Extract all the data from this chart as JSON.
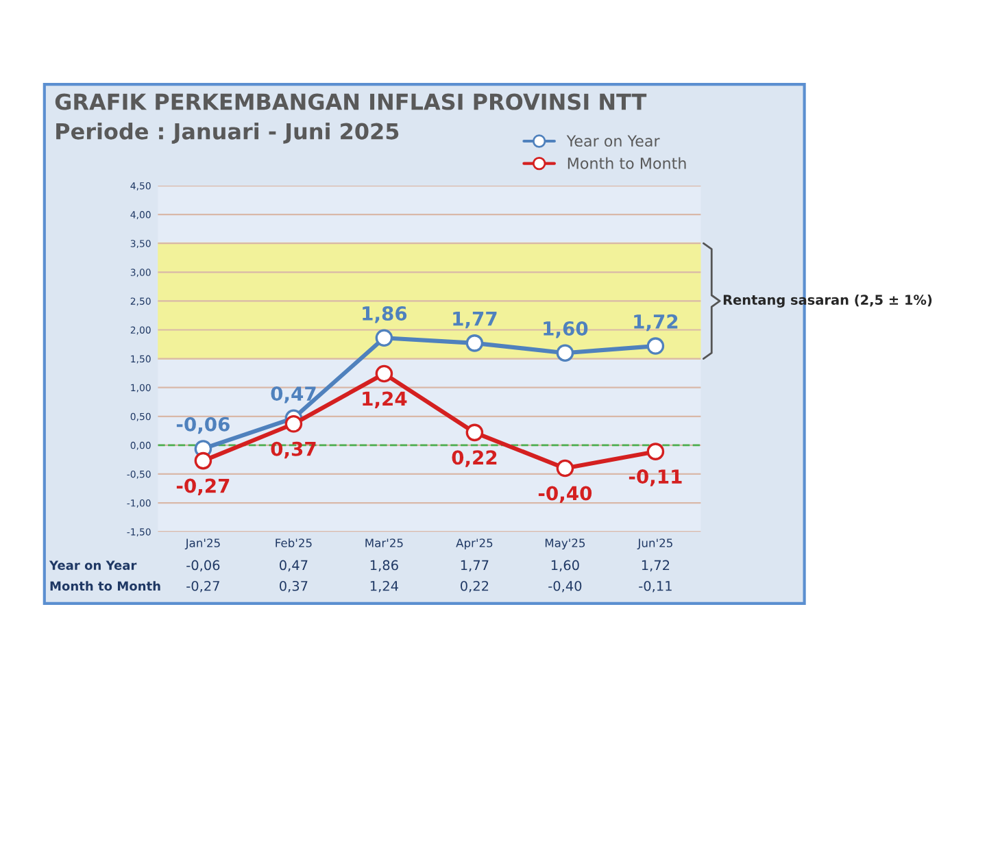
{
  "chart_data": {
    "type": "line",
    "title": "GRAFIK PERKEMBANGAN INFLASI PROVINSI NTT",
    "subtitle": "Periode : Januari - Juni 2025",
    "categories": [
      "Jan'25",
      "Feb'25",
      "Mar'25",
      "Apr'25",
      "May'25",
      "Jun'25"
    ],
    "series": [
      {
        "name": "Year on Year",
        "color": "#4f81bd",
        "values": [
          -0.06,
          0.47,
          1.86,
          1.77,
          1.6,
          1.72
        ],
        "value_labels": [
          "-0,06",
          "0,47",
          "1,86",
          "1,77",
          "1,60",
          "1,72"
        ]
      },
      {
        "name": "Month to Month",
        "color": "#d42020",
        "values": [
          -0.27,
          0.37,
          1.24,
          0.22,
          -0.4,
          -0.11
        ],
        "value_labels": [
          "-0,27",
          "0,37",
          "1,24",
          "0,22",
          "-0,40",
          "-0,11"
        ]
      }
    ],
    "ylim": [
      -1.5,
      4.5
    ],
    "yticks": [
      {
        "value": -1.5,
        "label": "-1,50"
      },
      {
        "value": -1.0,
        "label": "-1,00"
      },
      {
        "value": -0.5,
        "label": "-0,50"
      },
      {
        "value": 0,
        "label": "0,00"
      },
      {
        "value": 0.5,
        "label": "0,50"
      },
      {
        "value": 1.0,
        "label": "1,00"
      },
      {
        "value": 1.5,
        "label": "1,50"
      },
      {
        "value": 2.0,
        "label": "2,00"
      },
      {
        "value": 2.5,
        "label": "2,50"
      },
      {
        "value": 3.0,
        "label": "3,00"
      },
      {
        "value": 3.5,
        "label": "3,50"
      },
      {
        "value": 4.0,
        "label": "4,00"
      },
      {
        "value": 4.5,
        "label": "4,50"
      }
    ],
    "bands": [
      {
        "axis": "y",
        "from": 1.5,
        "to": 3.5,
        "label": "Rentang sasaran (2,5 ± 1%)",
        "color": "#f2f29a"
      }
    ],
    "ref_lines": [
      {
        "axis": "y",
        "value": 0,
        "color": "#4caf50",
        "line_style": "dashed"
      }
    ],
    "grid": "y",
    "legend": "top right",
    "marker": "circle",
    "line_style": "solid"
  }
}
